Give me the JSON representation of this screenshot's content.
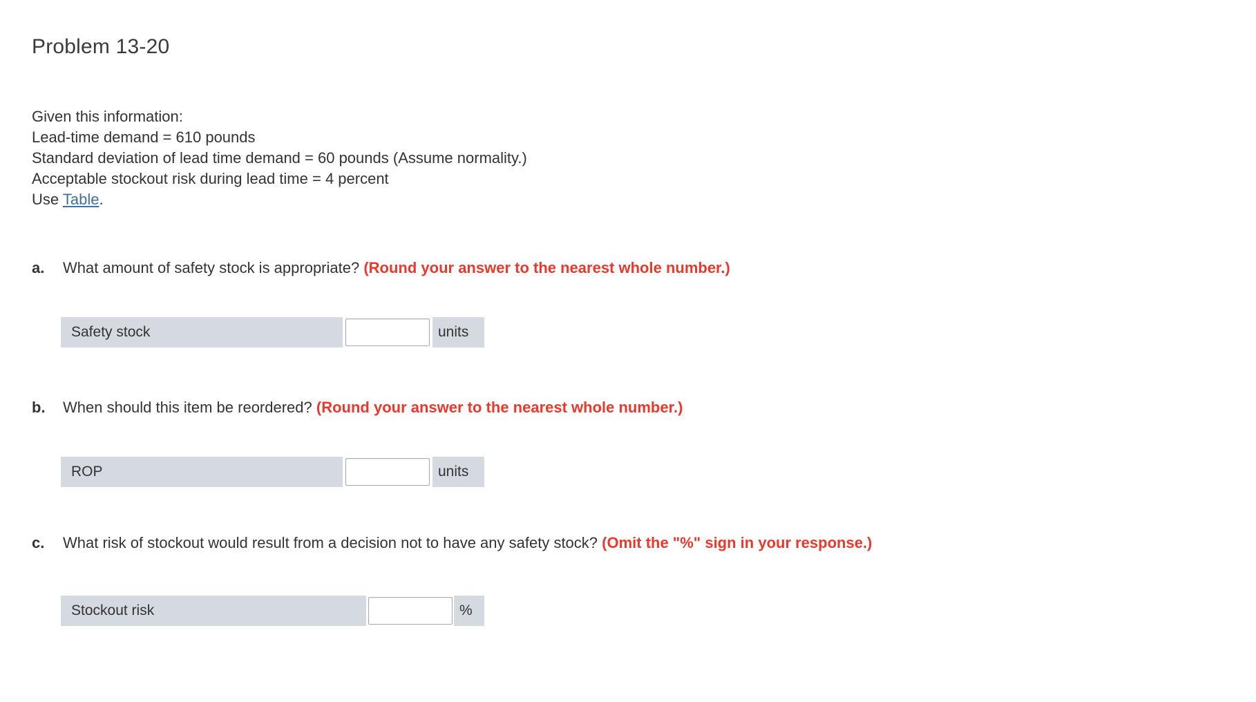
{
  "page": {
    "title": "Problem 13-20"
  },
  "given": {
    "lines": [
      "Given this information:",
      "Lead-time demand = 610 pounds",
      "Standard deviation of lead time demand = 60 pounds (Assume normality.)",
      "Acceptable stockout risk during lead time = 4 percent"
    ],
    "use_prefix": "Use ",
    "table_link_label": "Table",
    "use_suffix": "."
  },
  "questions": [
    {
      "letter": "a.",
      "text": "What amount of safety stock is appropriate? ",
      "instruction": "(Round your answer to the nearest whole number.)",
      "answer": {
        "label": "Safety stock",
        "value": "",
        "unit": "units"
      }
    },
    {
      "letter": "b.",
      "text": "When should this item be reordered? ",
      "instruction": "(Round your answer to the nearest whole number.)",
      "answer": {
        "label": "ROP",
        "value": "",
        "unit": "units"
      }
    },
    {
      "letter": "c.",
      "text": "What risk of stockout would result from a decision not to have any safety stock? ",
      "instruction": "(Omit the \"%\" sign in your response.)",
      "answer": {
        "label": "Stockout risk",
        "value": "",
        "unit": "%"
      }
    }
  ],
  "colors": {
    "accent_red": "#ea392b",
    "link_blue": "#3d6f9f",
    "cell_gray": "#d5d9e0",
    "text_dark": "#333333"
  }
}
